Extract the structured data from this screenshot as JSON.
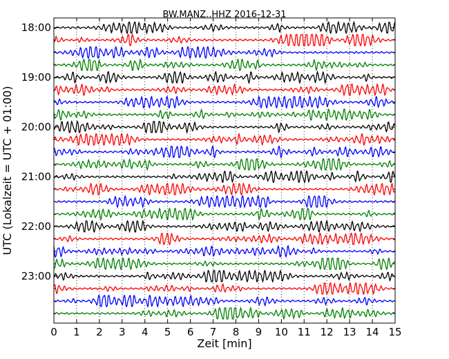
{
  "chart_data": {
    "type": "line",
    "title": "BW.MANZ..HHZ 2016-12-31",
    "xlabel": "Zeit  [min]",
    "ylabel": "UTC (Lokalzeit = UTC + 01:00)",
    "xlim": [
      0,
      15
    ],
    "x_ticks": [
      "0",
      "1",
      "2",
      "3",
      "4",
      "5",
      "6",
      "7",
      "8",
      "9",
      "10",
      "11",
      "12",
      "13",
      "14",
      "15"
    ],
    "hour_labels": [
      "18:00",
      "19:00",
      "20:00",
      "21:00",
      "22:00",
      "23:00"
    ],
    "trace_count": 24,
    "traces_per_hour": 4,
    "minutes_per_trace": 15,
    "colors": [
      "#000000",
      "#ff0000",
      "#0000ff",
      "#008000"
    ],
    "grid": "vertical dotted",
    "legend": "none"
  }
}
